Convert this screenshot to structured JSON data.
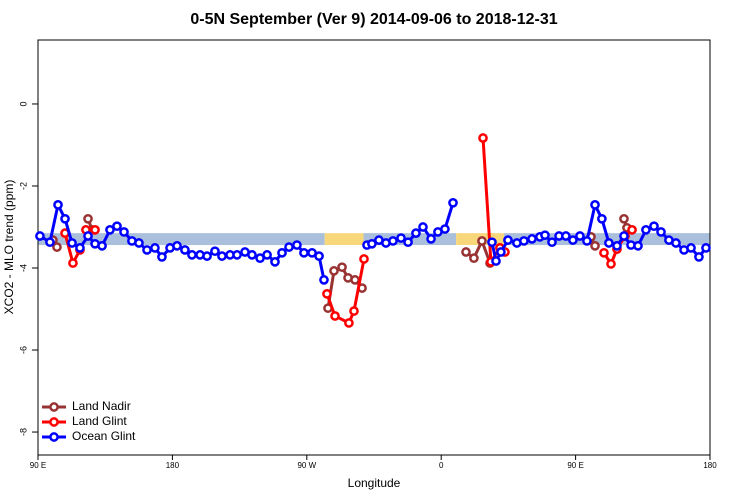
{
  "chart_data": {
    "type": "line",
    "title": "0-5N September (Ver 9)   2014-09-06 to 2018-12-31",
    "x_label": "Longitude",
    "y_label": "XCO2 - MLO trend (ppm)",
    "xlim": [
      90,
      540
    ],
    "ylim": [
      -8.56,
      1.56
    ],
    "xticks": [
      {
        "value": 90,
        "label": "90 E"
      },
      180,
      {
        "value": 270,
        "label": "90 W"
      },
      {
        "value": 360,
        "label": "0"
      },
      {
        "value": 450,
        "label": "90 E"
      },
      {
        "value": 540,
        "label": "180"
      }
    ],
    "yticks": [
      0,
      -2,
      -4,
      -6,
      -8
    ],
    "legend": "bottom-left",
    "band": {
      "y_range": [
        -3.15,
        -3.44
      ],
      "segments": [
        {
          "xlim": [
            90,
            282
          ],
          "color": "#a9bfdc"
        },
        {
          "xlim": [
            282,
            308
          ],
          "color": "#f8d67a"
        },
        {
          "xlim": [
            308,
            370
          ],
          "color": "#a9bfdc"
        },
        {
          "xlim": [
            370,
            402
          ],
          "color": "#f8d67a"
        },
        {
          "xlim": [
            402,
            540
          ],
          "color": "#a9bfdc"
        }
      ]
    },
    "series": [
      {
        "name": "Land Nadir",
        "color": "#993333",
        "x": [
          100.0,
          102.7,
          110,
          123.5,
          126.2,
          200,
          284.2,
          288.2,
          293.6,
          297.6,
          302.3,
          307.0,
          340,
          376.6,
          381.9,
          387.3,
          392.7,
          420,
          460.3,
          463.0,
          470,
          482.4,
          484.4
        ],
        "values": [
          -3.32,
          -3.49,
          null,
          -2.8,
          -3.07,
          null,
          -4.98,
          -4.07,
          -3.98,
          -4.24,
          -4.29,
          -4.49,
          null,
          -3.61,
          -3.76,
          -3.34,
          -3.88,
          null,
          -3.24,
          -3.46,
          null,
          -2.8,
          -3.02
        ]
      },
      {
        "name": "Land Glint",
        "color": "#ff0000",
        "x": [
          108.1,
          113.4,
          118.1,
          120,
          122.1,
          128.2,
          200,
          283.5,
          288.9,
          298.2,
          301.6,
          308.3,
          340,
          388.0,
          393.3,
          399.3,
          402.7,
          430,
          469.0,
          473.7,
          477.7,
          483.1,
          487.8
        ],
        "values": [
          -3.15,
          -3.88,
          -3.56,
          null,
          -3.07,
          -3.07,
          null,
          -4.63,
          -5.17,
          -5.34,
          -5.05,
          -3.78,
          null,
          -0.83,
          -3.85,
          -3.51,
          -3.61,
          null,
          -3.63,
          -3.9,
          -3.54,
          -3.22,
          -3.07
        ]
      },
      {
        "name": "Ocean Glint",
        "color": "#0000ff",
        "x": [
          91.3,
          98.0,
          103.4,
          108.1,
          112.8,
          118.1,
          123.5,
          128.2,
          132.9,
          138.2,
          142.9,
          147.6,
          152.9,
          157.6,
          163.0,
          168.3,
          173.0,
          178.4,
          183.1,
          188.4,
          193.1,
          198.5,
          203.2,
          208.5,
          213.2,
          218.6,
          223.3,
          228.6,
          233.3,
          238.7,
          243.4,
          248.7,
          253.4,
          258.1,
          263.4,
          268.1,
          273.5,
          278.2,
          281.5,
          300,
          310.3,
          313.6,
          318.3,
          323.0,
          327.7,
          333.1,
          337.8,
          343.1,
          347.8,
          353.2,
          357.8,
          362.5,
          367.9,
          380,
          394.0,
          396.7,
          400.0,
          404.7,
          410.7,
          415.4,
          420.8,
          426.1,
          429.5,
          434.2,
          438.9,
          443.5,
          448.2,
          452.9,
          457.6,
          463.0,
          467.6,
          472.3,
          477.7,
          482.4,
          487.1,
          491.8,
          497.1,
          502.5,
          507.2,
          512.5,
          517.2,
          522.6,
          527.3,
          532.6,
          537.3
        ],
        "values": [
          -3.22,
          -3.37,
          -2.46,
          -2.8,
          -3.39,
          -3.51,
          -3.22,
          -3.41,
          -3.46,
          -3.07,
          -2.98,
          -3.12,
          -3.34,
          -3.39,
          -3.56,
          -3.51,
          -3.73,
          -3.51,
          -3.46,
          -3.56,
          -3.68,
          -3.68,
          -3.71,
          -3.59,
          -3.71,
          -3.68,
          -3.68,
          -3.61,
          -3.68,
          -3.76,
          -3.68,
          -3.85,
          -3.63,
          -3.49,
          -3.44,
          -3.63,
          -3.63,
          -3.71,
          -4.29,
          null,
          -3.44,
          -3.41,
          -3.32,
          -3.39,
          -3.34,
          -3.27,
          -3.37,
          -3.15,
          -3.0,
          -3.29,
          -3.12,
          -3.05,
          -2.41,
          null,
          -3.37,
          -3.83,
          -3.61,
          -3.32,
          -3.39,
          -3.34,
          -3.29,
          -3.24,
          -3.2,
          -3.37,
          -3.22,
          -3.22,
          -3.32,
          -3.22,
          -3.34,
          -2.46,
          -2.8,
          -3.39,
          -3.46,
          -3.22,
          -3.44,
          -3.46,
          -3.07,
          -2.98,
          -3.12,
          -3.32,
          -3.39,
          -3.56,
          -3.51,
          -3.73,
          -3.51
        ]
      }
    ]
  }
}
